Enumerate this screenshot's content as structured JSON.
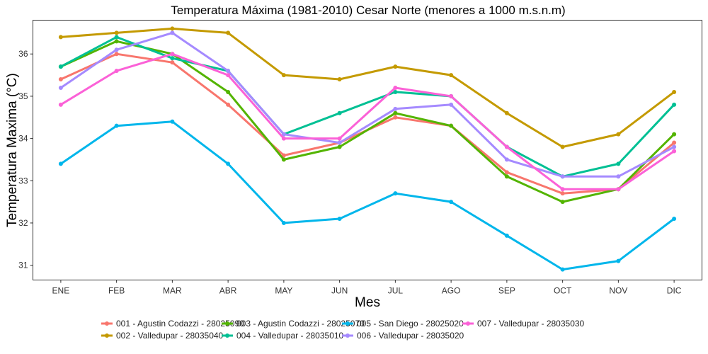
{
  "chart_data": {
    "type": "line",
    "title": "Temperatura Máxima (1981-2010) Cesar Norte (menores a 1000 m.s.n.m)",
    "xlabel": "Mes",
    "ylabel": "Temperatura Maxima (°C)",
    "categories": [
      "ENE",
      "FEB",
      "MAR",
      "ABR",
      "MAY",
      "JUN",
      "JUL",
      "AGO",
      "SEP",
      "OCT",
      "NOV",
      "DIC"
    ],
    "y_ticks": [
      31,
      32,
      33,
      34,
      35,
      36
    ],
    "ylim": [
      30.65,
      36.8
    ],
    "grid": false,
    "legend_position": "bottom",
    "series": [
      {
        "name": "001 - Agustin Codazzi - 28025090",
        "color": "#F8766D",
        "values": [
          35.4,
          36.0,
          35.8,
          34.8,
          33.6,
          33.9,
          34.5,
          34.3,
          33.2,
          32.7,
          32.8,
          33.9
        ]
      },
      {
        "name": "002 - Valledupar - 28035040",
        "color": "#C49A00",
        "values": [
          36.4,
          36.5,
          36.6,
          36.5,
          35.5,
          35.4,
          35.7,
          35.5,
          34.6,
          33.8,
          34.1,
          35.1
        ]
      },
      {
        "name": "003 - Agustin Codazzi - 28025070",
        "color": "#53B400",
        "values": [
          35.7,
          36.3,
          36.0,
          35.1,
          33.5,
          33.8,
          34.6,
          34.3,
          33.1,
          32.5,
          32.8,
          34.1
        ]
      },
      {
        "name": "004 - Valledupar - 28035010",
        "color": "#00C094",
        "values": [
          35.7,
          36.4,
          35.9,
          35.6,
          34.1,
          34.6,
          35.1,
          35.0,
          33.8,
          33.1,
          33.4,
          34.8
        ]
      },
      {
        "name": "005 - San Diego - 28025020",
        "color": "#00B6EB",
        "values": [
          33.4,
          34.3,
          34.4,
          33.4,
          32.0,
          32.1,
          32.7,
          32.5,
          31.7,
          30.9,
          31.1,
          32.1
        ]
      },
      {
        "name": "006 - Valledupar - 28035020",
        "color": "#A58AFF",
        "values": [
          35.2,
          36.1,
          36.5,
          35.6,
          34.1,
          33.9,
          34.7,
          34.8,
          33.5,
          33.1,
          33.1,
          33.8
        ]
      },
      {
        "name": "007 - Valledupar - 28035030",
        "color": "#FB61D7",
        "values": [
          34.8,
          35.6,
          36.0,
          35.5,
          34.0,
          34.0,
          35.2,
          35.0,
          33.8,
          32.8,
          32.8,
          33.7
        ]
      }
    ]
  }
}
